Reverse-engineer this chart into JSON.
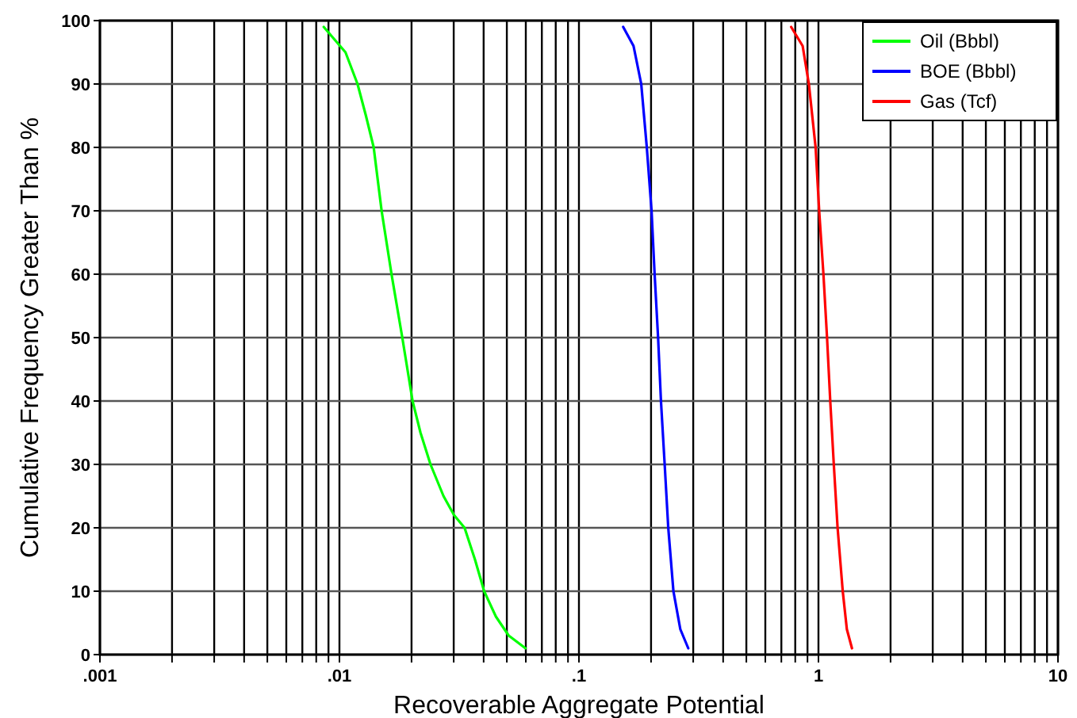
{
  "chart_data": {
    "type": "line",
    "xlabel": "Recoverable Aggregate Potential",
    "ylabel": "Cumulative Frequency Greater Than %",
    "log": "x",
    "grid": true,
    "legend": "top right",
    "marker": "none",
    "line_style": "solid",
    "xlim": [
      0.001,
      10
    ],
    "ylim": [
      0,
      100
    ],
    "xticks": [
      {
        "value": 0.001,
        "label": ".001"
      },
      {
        "value": 0.002,
        "label": null
      },
      {
        "value": 0.003,
        "label": null
      },
      {
        "value": 0.004,
        "label": null
      },
      {
        "value": 0.005,
        "label": null
      },
      {
        "value": 0.006,
        "label": null
      },
      {
        "value": 0.007,
        "label": null
      },
      {
        "value": 0.008,
        "label": null
      },
      {
        "value": 0.009,
        "label": null
      },
      {
        "value": 0.01,
        "label": ".01"
      },
      {
        "value": 0.02,
        "label": null
      },
      {
        "value": 0.03,
        "label": null
      },
      {
        "value": 0.04,
        "label": null
      },
      {
        "value": 0.05,
        "label": null
      },
      {
        "value": 0.06,
        "label": null
      },
      {
        "value": 0.07,
        "label": null
      },
      {
        "value": 0.08,
        "label": null
      },
      {
        "value": 0.09,
        "label": null
      },
      {
        "value": 0.1,
        "label": ".1"
      },
      {
        "value": 0.2,
        "label": null
      },
      {
        "value": 0.3,
        "label": null
      },
      {
        "value": 0.4,
        "label": null
      },
      {
        "value": 0.5,
        "label": null
      },
      {
        "value": 0.6,
        "label": null
      },
      {
        "value": 0.7,
        "label": null
      },
      {
        "value": 0.8,
        "label": null
      },
      {
        "value": 0.9,
        "label": null
      },
      1,
      {
        "value": 2,
        "label": null
      },
      {
        "value": 3,
        "label": null
      },
      {
        "value": 4,
        "label": null
      },
      {
        "value": 5,
        "label": null
      },
      {
        "value": 6,
        "label": null
      },
      {
        "value": 7,
        "label": null
      },
      {
        "value": 8,
        "label": null
      },
      {
        "value": 9,
        "label": null
      },
      10
    ],
    "yticks": [
      0,
      10,
      20,
      30,
      40,
      50,
      60,
      70,
      80,
      90,
      100
    ],
    "series": [
      {
        "name": "Oil (Bbbl)",
        "color": "#00ff00",
        "x": [
          0.0086,
          0.0106,
          0.0119,
          0.0129,
          0.0139,
          0.015,
          0.0165,
          0.0183,
          0.0202,
          0.0218,
          0.024,
          0.0272,
          0.0301,
          0.0333,
          0.0368,
          0.0402,
          0.045,
          0.0509,
          0.0598
        ],
        "values": [
          99,
          95,
          90,
          85,
          80,
          70,
          60,
          50,
          40,
          35,
          30,
          25,
          22,
          20,
          15,
          10,
          6,
          3,
          1
        ]
      },
      {
        "name": "BOE (Bbbl)",
        "color": "#0000ff",
        "x": [
          0.153,
          0.169,
          0.182,
          0.192,
          0.201,
          0.207,
          0.214,
          0.22,
          0.228,
          0.236,
          0.248,
          0.265,
          0.286
        ],
        "values": [
          99,
          96,
          90,
          80,
          70,
          60,
          50,
          40,
          30,
          20,
          10,
          4,
          1
        ]
      },
      {
        "name": "Gas (Tcf)",
        "color": "#ff0000",
        "x": [
          0.769,
          0.859,
          0.912,
          0.973,
          1.007,
          1.049,
          1.086,
          1.12,
          1.159,
          1.202,
          1.263,
          1.314,
          1.38
        ],
        "values": [
          99,
          96,
          90,
          80,
          70,
          60,
          50,
          40,
          30,
          20,
          10,
          4,
          1
        ]
      }
    ]
  }
}
